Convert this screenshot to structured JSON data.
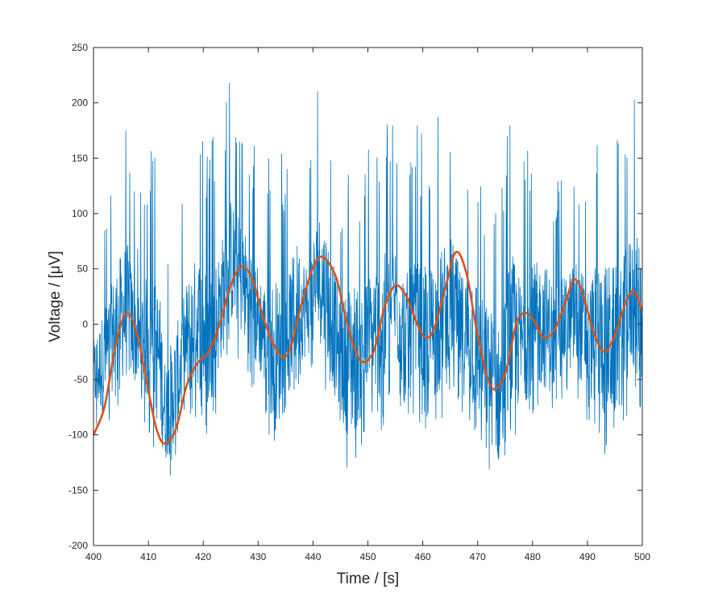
{
  "chart_data": {
    "type": "line",
    "xlabel": "Time / [s]",
    "ylabel": "Voltage / [μV]",
    "xlim": [
      400,
      500
    ],
    "ylim": [
      -200,
      250
    ],
    "xticks": [
      400,
      410,
      420,
      430,
      440,
      450,
      460,
      470,
      480,
      490,
      500
    ],
    "yticks": [
      -200,
      -150,
      -100,
      -50,
      0,
      50,
      100,
      150,
      200,
      250
    ],
    "grid": false,
    "legend": "none",
    "series": [
      {
        "color": "#0072BD",
        "style": "noisy high-frequency signal",
        "envelope": {
          "x": [
            400,
            402,
            404,
            406,
            408,
            410,
            412,
            413,
            415,
            417,
            419,
            421,
            423,
            425,
            427,
            429,
            431,
            433,
            435,
            437,
            439,
            441,
            443,
            445,
            447,
            449,
            451,
            453,
            455,
            457,
            459,
            461,
            463,
            465,
            467,
            469,
            471,
            473,
            474,
            476,
            478,
            480,
            482,
            484,
            486,
            488,
            490,
            492,
            494,
            496,
            498,
            500
          ],
          "min": [
            -95,
            -105,
            -75,
            -80,
            -75,
            -100,
            -125,
            -148,
            -130,
            -95,
            -85,
            -110,
            -65,
            -25,
            -35,
            -60,
            -75,
            -130,
            -105,
            -60,
            -50,
            -40,
            -70,
            -115,
            -140,
            -110,
            -95,
            -100,
            -60,
            -95,
            -95,
            -100,
            -95,
            -60,
            -85,
            -110,
            -120,
            -145,
            -162,
            -120,
            -100,
            -90,
            -85,
            -90,
            -60,
            -70,
            -90,
            -110,
            -125,
            -110,
            -70,
            -85
          ],
          "max": [
            50,
            112,
            148,
            205,
            110,
            165,
            165,
            65,
            95,
            148,
            188,
            170,
            178,
            226,
            195,
            175,
            130,
            180,
            145,
            185,
            140,
            218,
            205,
            120,
            190,
            145,
            178,
            195,
            185,
            160,
            180,
            170,
            190,
            200,
            150,
            195,
            135,
            138,
            120,
            220,
            148,
            170,
            175,
            140,
            125,
            165,
            140,
            190,
            200,
            180,
            208,
            200
          ]
        }
      },
      {
        "color": "#D95319",
        "style": "smooth fit",
        "x": [
          400,
          402,
          404,
          406,
          408,
          410,
          411.5,
          413,
          415,
          417,
          419,
          421,
          423,
          425,
          427,
          429,
          431,
          433,
          434.5,
          436,
          438,
          441,
          444,
          446,
          448.5,
          451,
          453,
          455,
          457,
          459,
          460.5,
          462,
          464,
          466,
          468,
          470,
          472.5,
          475,
          477,
          478.5,
          480,
          482,
          484,
          486,
          487.5,
          489,
          491,
          493,
          495,
          497,
          498.5,
          500
        ],
        "y": [
          -100,
          -75,
          -20,
          10,
          -10,
          -60,
          -95,
          -108,
          -95,
          -55,
          -35,
          -25,
          0,
          35,
          52,
          40,
          5,
          -20,
          -30,
          -20,
          20,
          60,
          45,
          5,
          -32,
          -25,
          15,
          35,
          25,
          0,
          -12,
          -5,
          30,
          65,
          45,
          -10,
          -57,
          -45,
          0,
          10,
          5,
          -12,
          -5,
          20,
          40,
          30,
          -5,
          -25,
          -10,
          20,
          30,
          12
        ]
      }
    ]
  }
}
